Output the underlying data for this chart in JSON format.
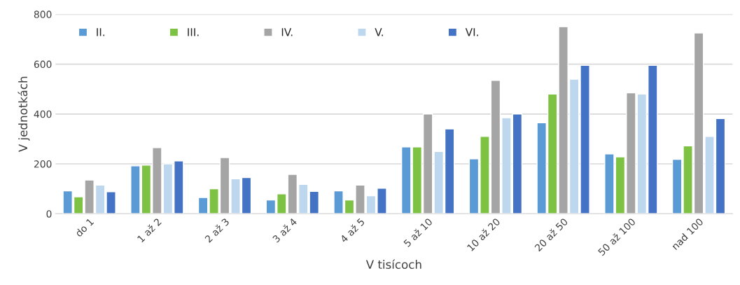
{
  "chart_data": {
    "type": "bar",
    "xlabel": "V tisícoch",
    "ylabel": "V jednotkách",
    "categories": [
      "do 1",
      "1 až 2",
      "2 až 3",
      "3 až 4",
      "4 až 5",
      "5 až 10",
      "10 až 20",
      "20 až 50",
      "50 až 100",
      "nad 100"
    ],
    "series": [
      {
        "name": "II.",
        "color": "#5b9bd5",
        "values": [
          92,
          192,
          65,
          55,
          92,
          268,
          220,
          365,
          240,
          218
        ]
      },
      {
        "name": "III.",
        "color": "#7dc242",
        "values": [
          68,
          195,
          100,
          80,
          55,
          268,
          310,
          480,
          228,
          272
        ]
      },
      {
        "name": "IV.",
        "color": "#a5a5a5",
        "values": [
          135,
          265,
          225,
          158,
          115,
          400,
          535,
          750,
          485,
          725
        ]
      },
      {
        "name": "V.",
        "color": "#bdd7ee",
        "values": [
          115,
          200,
          140,
          118,
          72,
          250,
          385,
          540,
          480,
          310
        ]
      },
      {
        "name": "VI.",
        "color": "#4472c4",
        "values": [
          88,
          212,
          145,
          90,
          102,
          340,
          400,
          595,
          595,
          382
        ]
      }
    ],
    "ylim": [
      0,
      800
    ],
    "yticks": [
      0,
      200,
      400,
      600,
      800
    ],
    "grid": "y",
    "legend": "top"
  }
}
